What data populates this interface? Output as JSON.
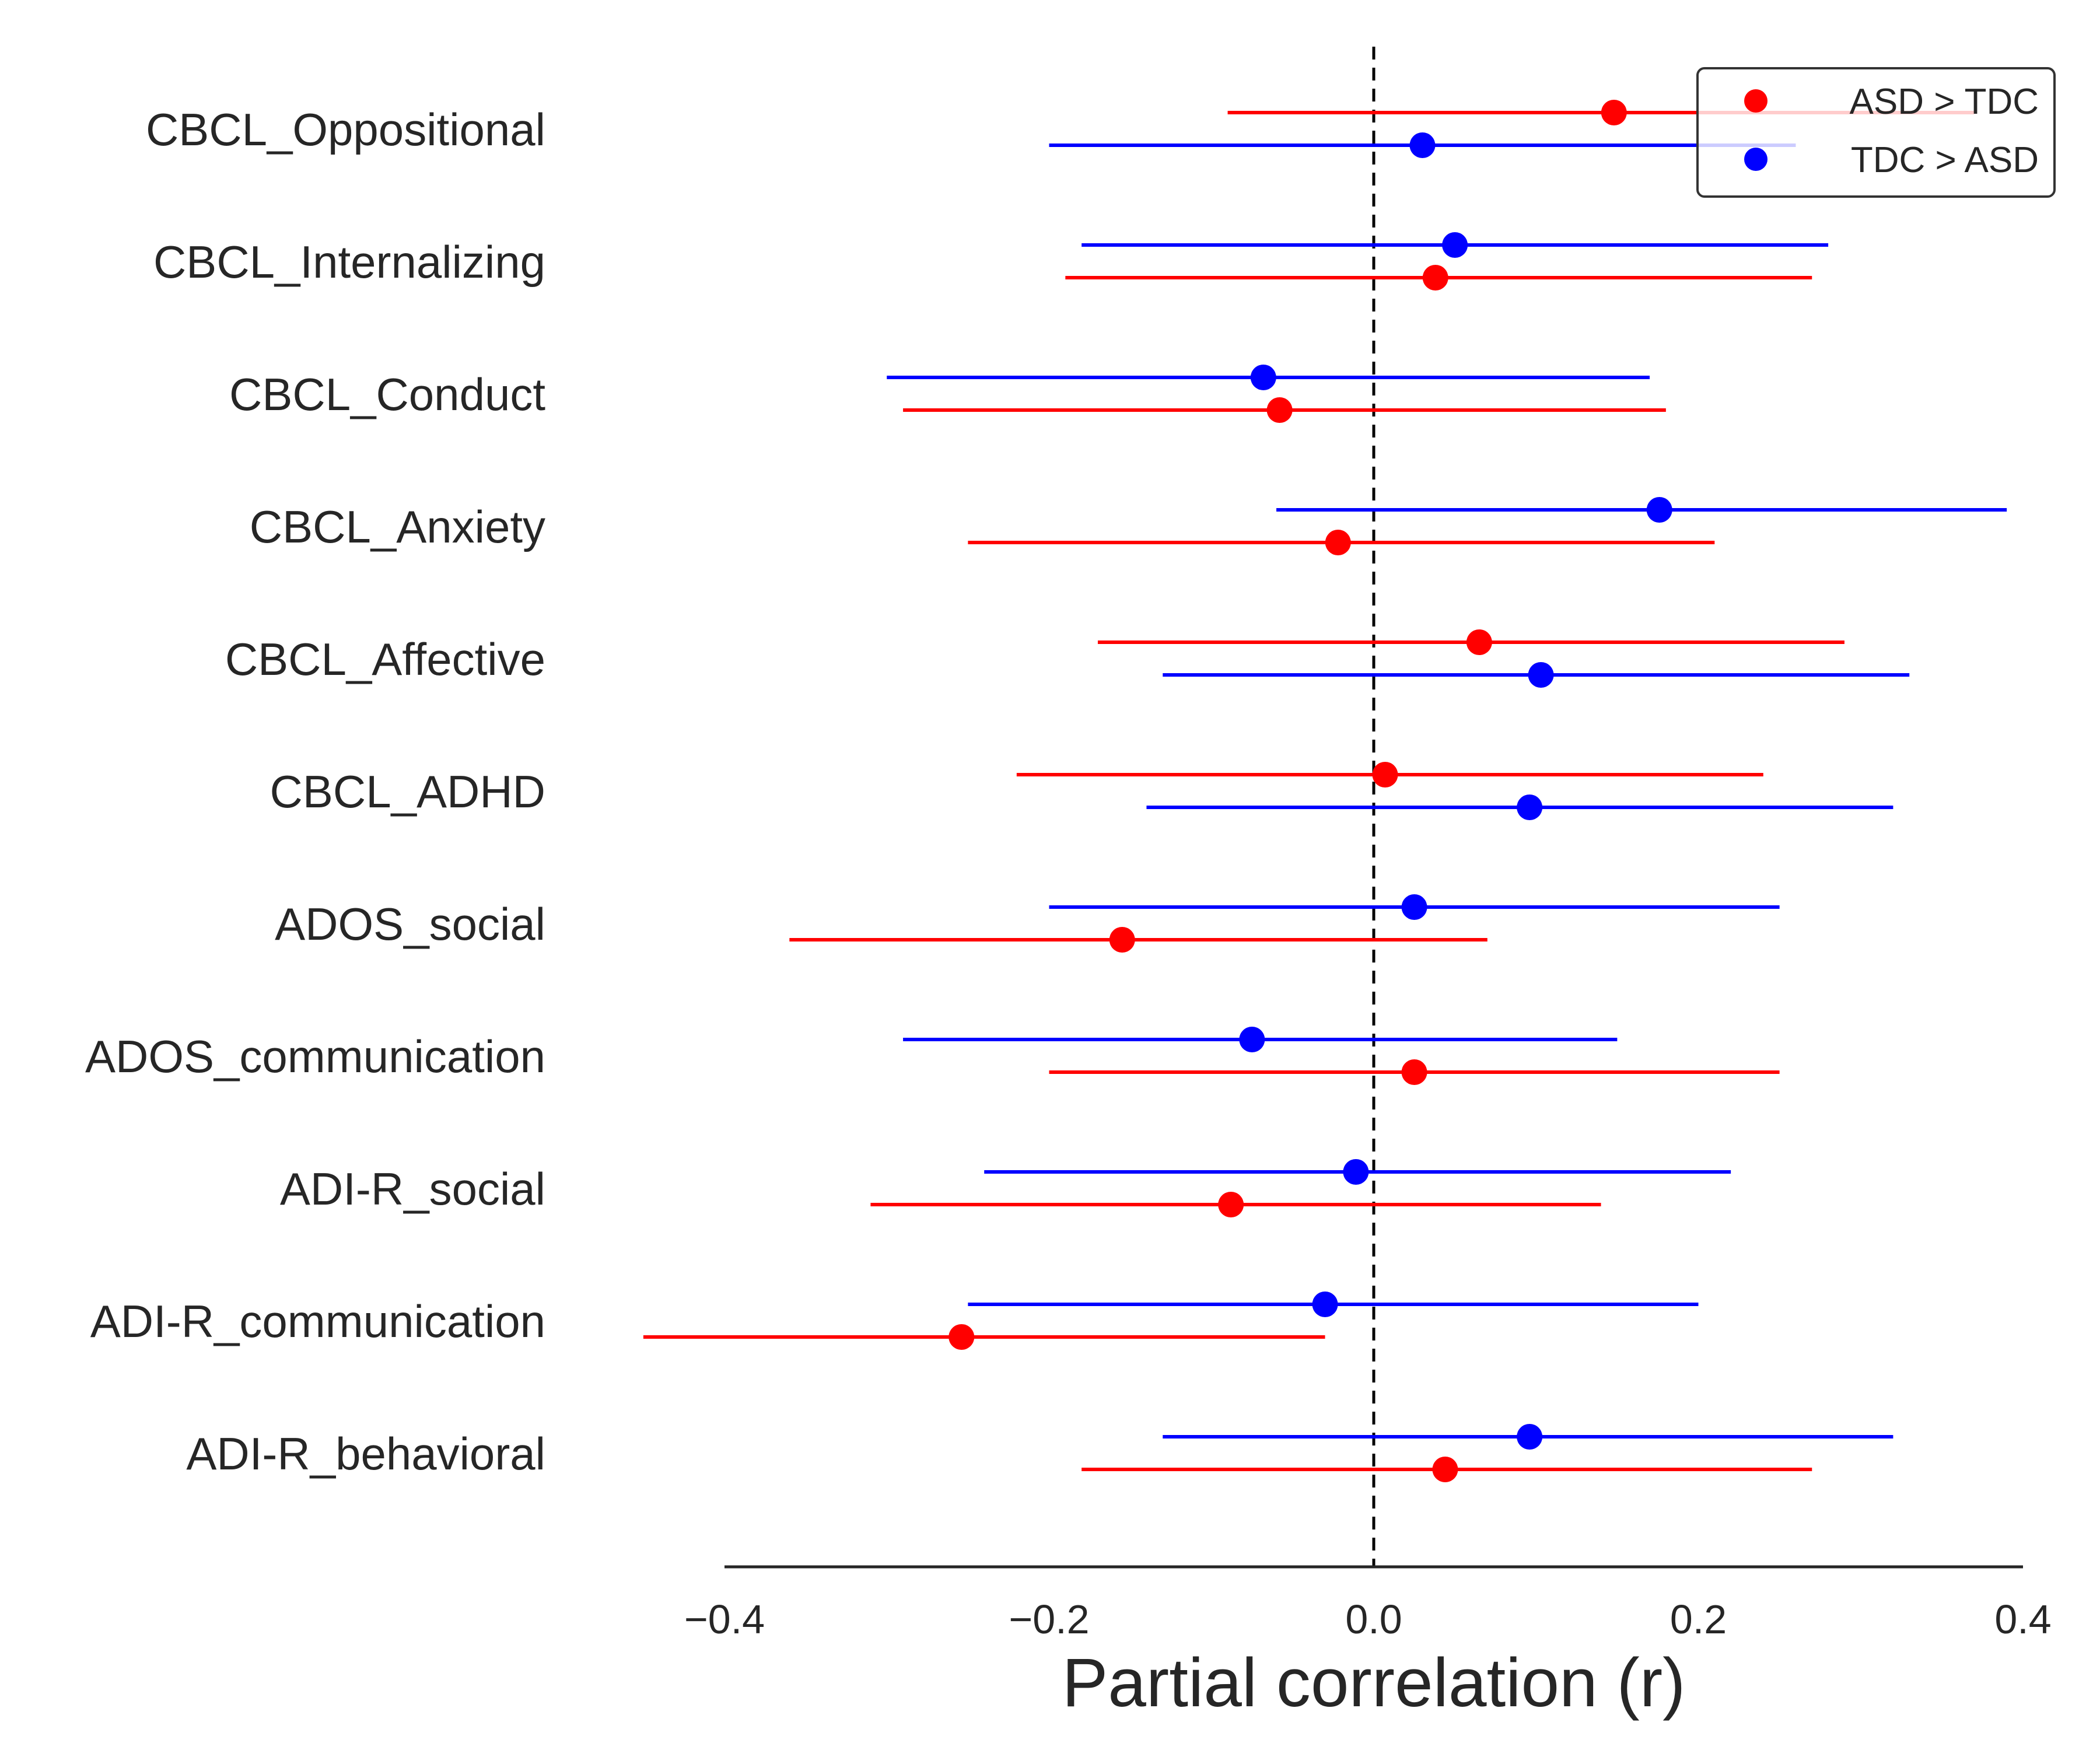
{
  "chart_data": {
    "type": "scatter",
    "subtype": "forest-plot",
    "xlabel": "Partial correlation (r)",
    "ylabel": "",
    "xlim": [
      -0.4,
      0.4
    ],
    "xticks": [
      -0.4,
      -0.2,
      0.0,
      0.2,
      0.4
    ],
    "xtick_labels": [
      "−0.4",
      "−0.2",
      "0.0",
      "0.2",
      "0.4"
    ],
    "reference_line": {
      "x": 0.0,
      "style": "dashed",
      "color": "#000000"
    },
    "categories": [
      "CBCL_Oppositional",
      "CBCL_Internalizing",
      "CBCL_Conduct",
      "CBCL_Anxiety",
      "CBCL_Affective",
      "CBCL_ADHD",
      "ADOS_social",
      "ADOS_communication",
      "ADI-R_social",
      "ADI-R_communication",
      "ADI-R_behavioral"
    ],
    "series": [
      {
        "name": "ASD > TDC",
        "color": "#ff0000",
        "order_in_row": [
          0,
          1,
          1,
          1,
          0,
          0,
          1,
          1,
          1,
          1,
          1
        ],
        "points": [
          {
            "r": 0.148,
            "lo": -0.09,
            "hi": 0.37
          },
          {
            "r": 0.038,
            "lo": -0.19,
            "hi": 0.27
          },
          {
            "r": -0.058,
            "lo": -0.29,
            "hi": 0.18
          },
          {
            "r": -0.022,
            "lo": -0.25,
            "hi": 0.21
          },
          {
            "r": 0.065,
            "lo": -0.17,
            "hi": 0.29
          },
          {
            "r": 0.007,
            "lo": -0.22,
            "hi": 0.24
          },
          {
            "r": -0.155,
            "lo": -0.36,
            "hi": 0.07
          },
          {
            "r": 0.025,
            "lo": -0.2,
            "hi": 0.25
          },
          {
            "r": -0.088,
            "lo": -0.31,
            "hi": 0.14
          },
          {
            "r": -0.254,
            "lo": -0.45,
            "hi": -0.03
          },
          {
            "r": 0.044,
            "lo": -0.18,
            "hi": 0.27
          }
        ]
      },
      {
        "name": "TDC > ASD",
        "color": "#0000ff",
        "order_in_row": [
          1,
          0,
          0,
          0,
          1,
          1,
          0,
          0,
          0,
          0,
          0
        ],
        "points": [
          {
            "r": 0.03,
            "lo": -0.2,
            "hi": 0.26
          },
          {
            "r": 0.05,
            "lo": -0.18,
            "hi": 0.28
          },
          {
            "r": -0.068,
            "lo": -0.3,
            "hi": 0.17
          },
          {
            "r": 0.176,
            "lo": -0.06,
            "hi": 0.39
          },
          {
            "r": 0.103,
            "lo": -0.13,
            "hi": 0.33
          },
          {
            "r": 0.096,
            "lo": -0.14,
            "hi": 0.32
          },
          {
            "r": 0.025,
            "lo": -0.2,
            "hi": 0.25
          },
          {
            "r": -0.075,
            "lo": -0.29,
            "hi": 0.15
          },
          {
            "r": -0.011,
            "lo": -0.24,
            "hi": 0.22
          },
          {
            "r": -0.03,
            "lo": -0.25,
            "hi": 0.2
          },
          {
            "r": 0.096,
            "lo": -0.13,
            "hi": 0.32
          }
        ]
      }
    ],
    "legend": {
      "position": "top-right",
      "entries": [
        "ASD > TDC",
        "TDC > ASD"
      ]
    },
    "grid": false
  }
}
